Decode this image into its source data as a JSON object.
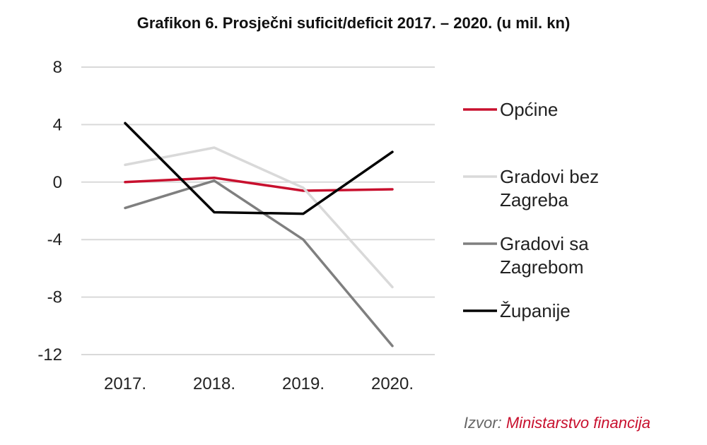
{
  "chart_data": {
    "type": "line",
    "title": "Grafikon 6. Prosječni suficit/deficit 2017. – 2020. (u mil. kn)",
    "categories": [
      "2017.",
      "2018.",
      "2019.",
      "2020."
    ],
    "ylim": [
      -12,
      8
    ],
    "yticks": [
      8,
      4,
      0,
      -4,
      -8,
      -12
    ],
    "grid": true,
    "legend_position": "right",
    "series": [
      {
        "name": "Općine",
        "color": "#c8102e",
        "values": [
          0.0,
          0.3,
          -0.6,
          -0.5
        ]
      },
      {
        "name": "Gradovi bez Zagreba",
        "color": "#d9d9d9",
        "values": [
          1.2,
          2.4,
          -0.4,
          -7.3
        ]
      },
      {
        "name": "Gradovi sa Zagrebom",
        "color": "#7f7f7f",
        "values": [
          -1.8,
          0.1,
          -4.0,
          -11.4
        ]
      },
      {
        "name": "Županije",
        "color": "#000000",
        "values": [
          4.1,
          -2.1,
          -2.2,
          2.1
        ]
      }
    ]
  },
  "legend": [
    {
      "lines": [
        "Općine"
      ]
    },
    {
      "lines": [
        "Gradovi bez",
        "Zagreba"
      ]
    },
    {
      "lines": [
        "Gradovi sa",
        "Zagrebom"
      ]
    },
    {
      "lines": [
        "Županije"
      ]
    }
  ],
  "source": {
    "label": "Izvor:",
    "value": "Ministarstvo financija"
  }
}
